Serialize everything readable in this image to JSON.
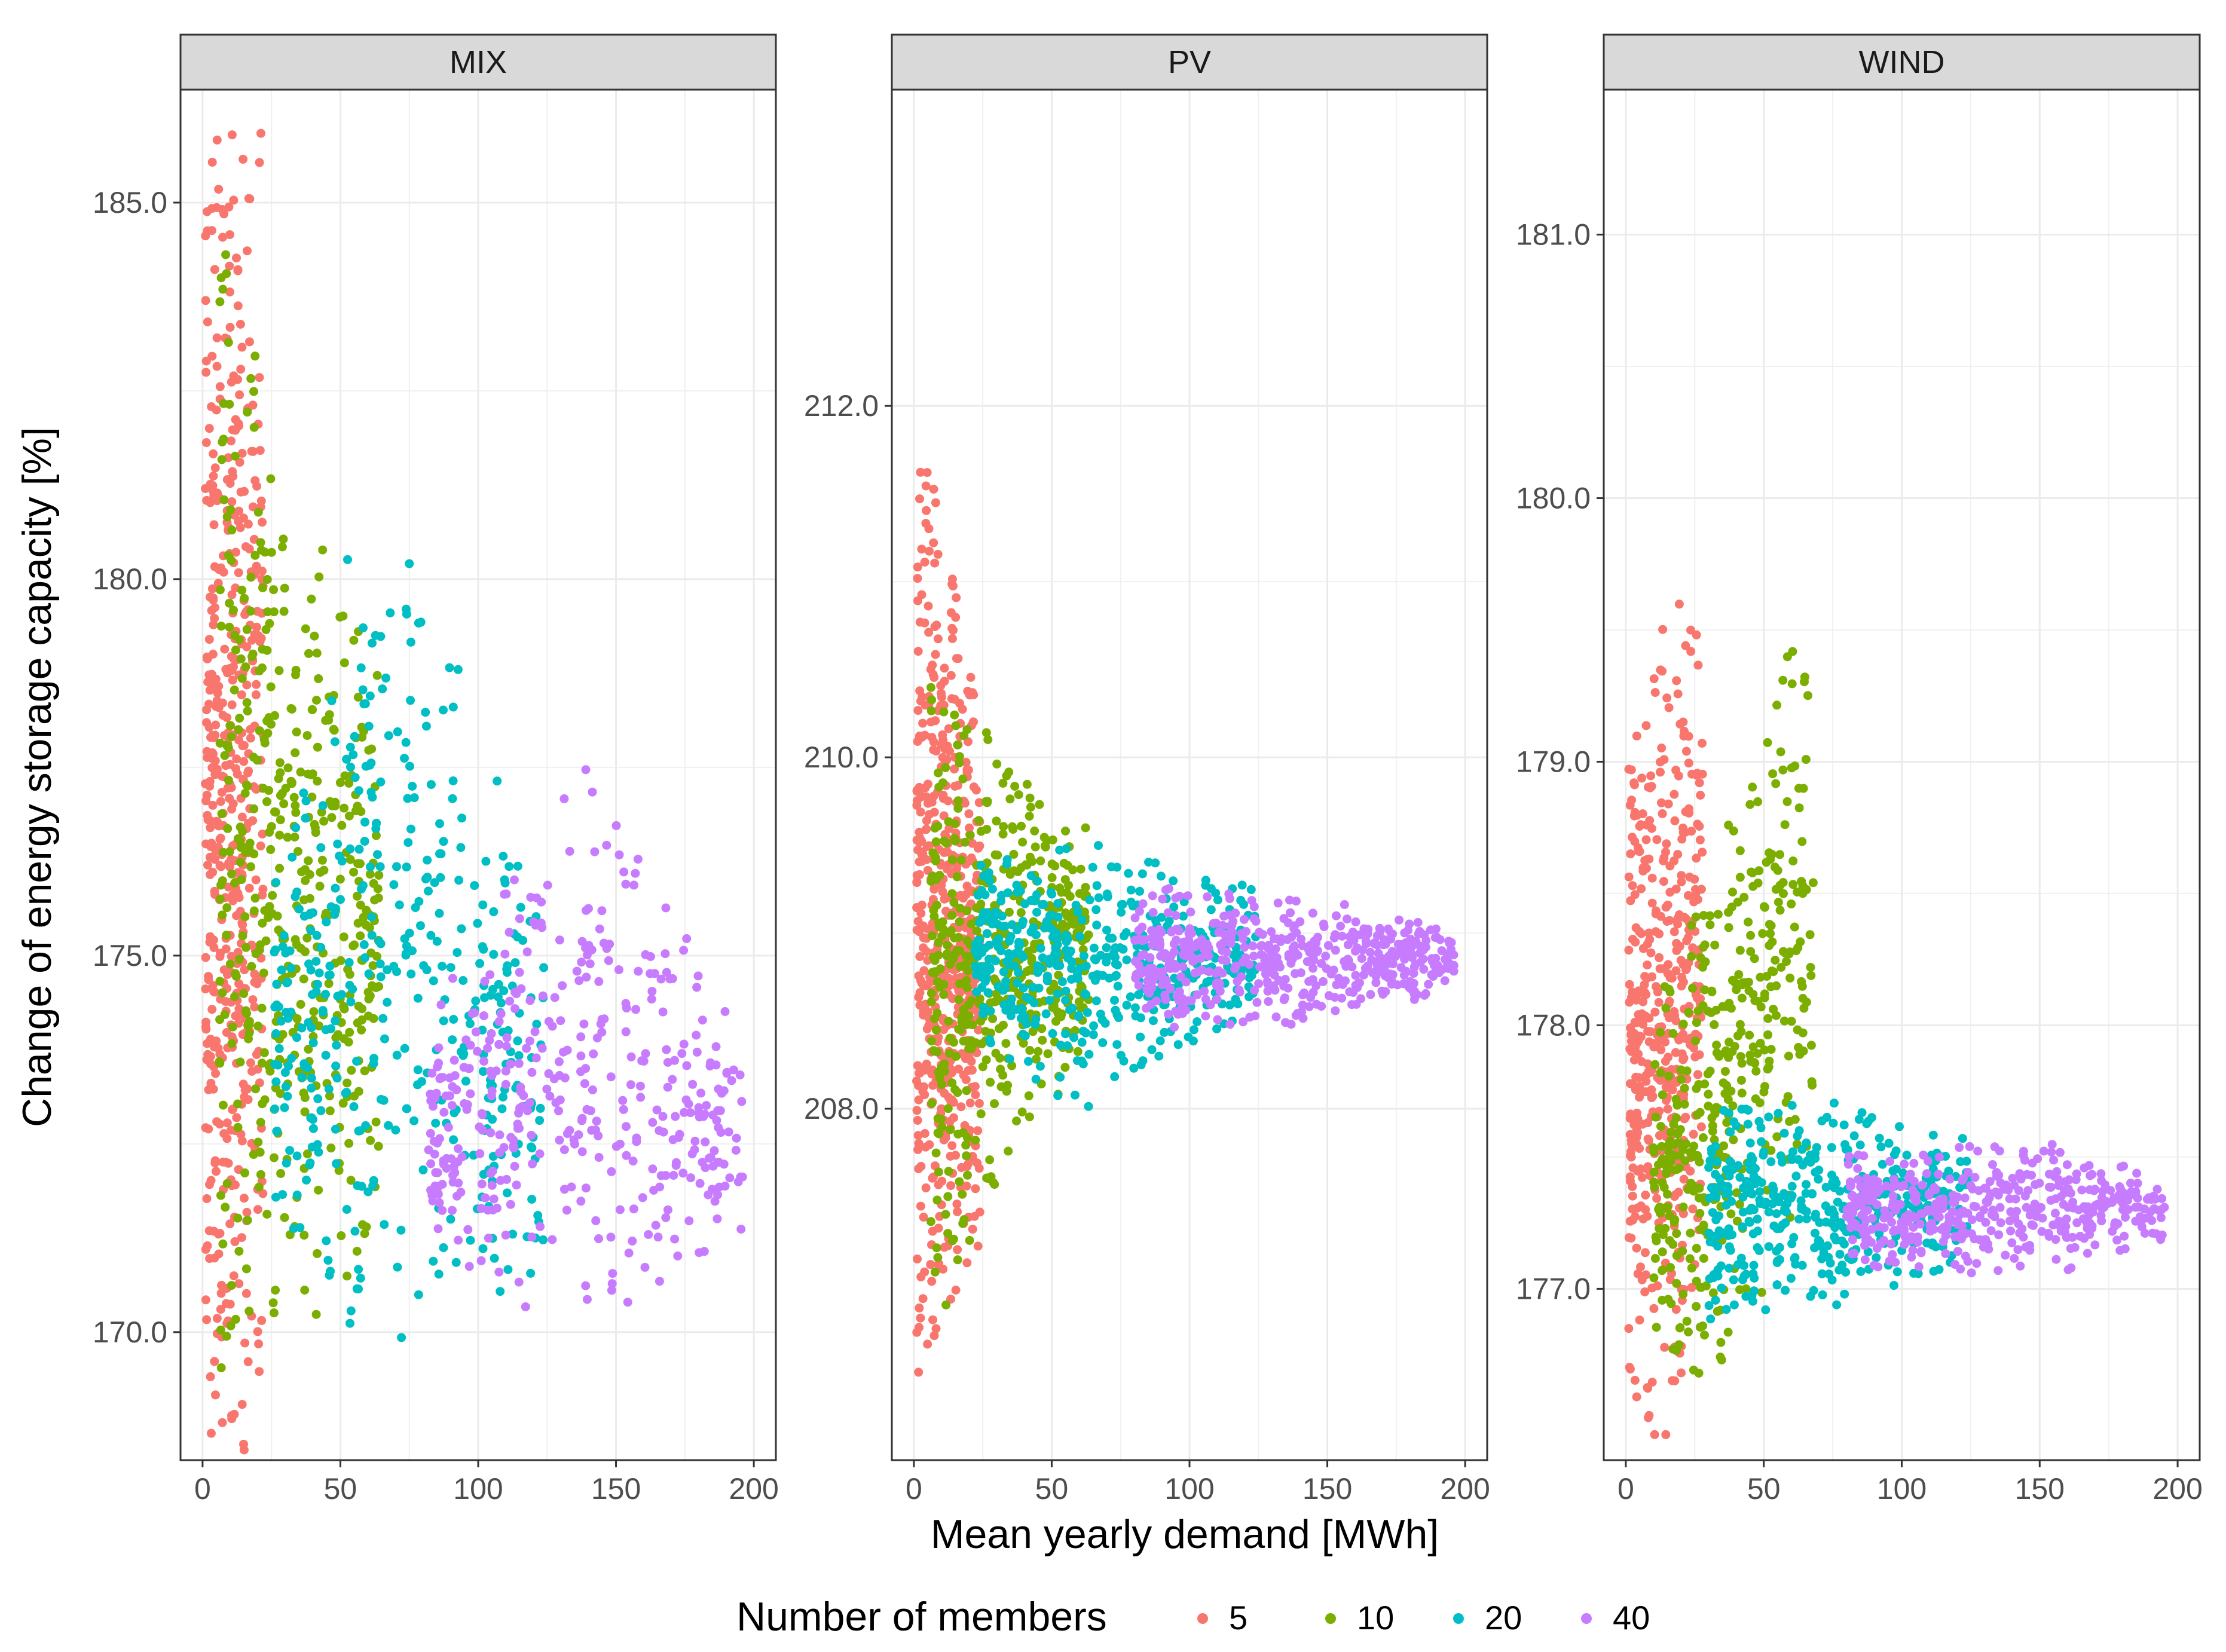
{
  "chart_data": {
    "type": "scatter",
    "title": "",
    "xlabel": "Mean yearly demand [MWh]",
    "ylabel": "Change of energy storage capacity [%]",
    "legend": {
      "title": "Number of members",
      "position": "bottom",
      "entries": [
        {
          "label": "5",
          "color": "#F8766D"
        },
        {
          "label": "10",
          "color": "#7CAE00"
        },
        {
          "label": "20",
          "color": "#00BFC4"
        },
        {
          "label": "40",
          "color": "#C77CFF"
        }
      ]
    },
    "xlim": [
      -8,
      208
    ],
    "xticks": [
      0,
      50,
      100,
      150,
      200
    ],
    "xtick_labels": [
      "0",
      "50",
      "100",
      "150",
      "200"
    ],
    "point_generation": "approximate distribution summaries: each series is rendered as n scattered points around a mean curve (center at x) with +/- half-width; values estimated from the source figure",
    "facets": [
      {
        "name": "MIX",
        "ylim": [
          168.3,
          186.5
        ],
        "yticks": [
          170.0,
          175.0,
          180.0,
          185.0
        ],
        "ytick_labels": [
          "170.0",
          "175.0",
          "180.0",
          "185.0"
        ],
        "series": [
          {
            "name": "5",
            "color": "#F8766D",
            "n": 520,
            "x_range": [
              1,
              22
            ],
            "center": [
              [
                1,
                177.0
              ],
              [
                22,
                177.0
              ]
            ],
            "halfwidth": [
              [
                1,
                7.5
              ],
              [
                22,
                7.5
              ]
            ]
          },
          {
            "name": "10",
            "color": "#7CAE00",
            "n": 480,
            "x_range": [
              6,
              64
            ],
            "center": [
              [
                6,
                177.0
              ],
              [
                40,
                175.5
              ],
              [
                64,
                175.0
              ]
            ],
            "halfwidth": [
              [
                6,
                6.5
              ],
              [
                40,
                4.5
              ],
              [
                64,
                3.2
              ]
            ]
          },
          {
            "name": "20",
            "color": "#00BFC4",
            "n": 420,
            "x_range": [
              26,
              124
            ],
            "center": [
              [
                26,
                173.5
              ],
              [
                60,
                175.5
              ],
              [
                100,
                174.0
              ],
              [
                124,
                173.0
              ]
            ],
            "halfwidth": [
              [
                26,
                2.0
              ],
              [
                60,
                5.0
              ],
              [
                100,
                3.5
              ],
              [
                124,
                1.8
              ]
            ]
          },
          {
            "name": "40",
            "color": "#C77CFF",
            "n": 420,
            "x_range": [
              82,
              196
            ],
            "center": [
              [
                82,
                172.5
              ],
              [
                140,
                173.8
              ],
              [
                196,
                172.5
              ]
            ],
            "halfwidth": [
              [
                82,
                1.5
              ],
              [
                140,
                3.2
              ],
              [
                196,
                1.2
              ]
            ]
          }
        ]
      },
      {
        "name": "PV",
        "ylim": [
          206.0,
          213.8
        ],
        "yticks": [
          208.0,
          210.0,
          212.0
        ],
        "ytick_labels": [
          "208.0",
          "210.0",
          "212.0"
        ],
        "series": [
          {
            "name": "5",
            "color": "#F8766D",
            "n": 560,
            "x_range": [
              1,
              24
            ],
            "center": [
              [
                1,
                209.2
              ],
              [
                24,
                208.8
              ]
            ],
            "halfwidth": [
              [
                1,
                2.3
              ],
              [
                24,
                1.3
              ]
            ]
          },
          {
            "name": "10",
            "color": "#7CAE00",
            "n": 480,
            "x_range": [
              6,
              64
            ],
            "center": [
              [
                6,
                208.6
              ],
              [
                35,
                208.8
              ],
              [
                64,
                209.0
              ]
            ],
            "halfwidth": [
              [
                6,
                1.6
              ],
              [
                35,
                1.0
              ],
              [
                64,
                0.5
              ]
            ]
          },
          {
            "name": "20",
            "color": "#00BFC4",
            "n": 460,
            "x_range": [
              22,
              124
            ],
            "center": [
              [
                22,
                208.9
              ],
              [
                60,
                208.75
              ],
              [
                124,
                208.9
              ]
            ],
            "halfwidth": [
              [
                22,
                0.4
              ],
              [
                60,
                0.65
              ],
              [
                124,
                0.3
              ]
            ]
          },
          {
            "name": "40",
            "color": "#C77CFF",
            "n": 500,
            "x_range": [
              80,
              196
            ],
            "center": [
              [
                80,
                208.85
              ],
              [
                150,
                208.85
              ],
              [
                196,
                208.85
              ]
            ],
            "halfwidth": [
              [
                80,
                0.35
              ],
              [
                150,
                0.3
              ],
              [
                196,
                0.15
              ]
            ]
          }
        ]
      },
      {
        "name": "WIND",
        "ylim": [
          176.35,
          181.55
        ],
        "yticks": [
          177.0,
          178.0,
          179.0,
          180.0,
          181.0
        ],
        "ytick_labels": [
          "177.0",
          "178.0",
          "179.0",
          "180.0",
          "181.0"
        ],
        "series": [
          {
            "name": "5",
            "color": "#F8766D",
            "n": 480,
            "x_range": [
              1,
              28
            ],
            "center": [
              [
                1,
                177.8
              ],
              [
                14,
                178.0
              ],
              [
                28,
                178.3
              ]
            ],
            "halfwidth": [
              [
                1,
                1.0
              ],
              [
                14,
                1.4
              ],
              [
                28,
                1.0
              ]
            ]
          },
          {
            "name": "10",
            "color": "#7CAE00",
            "n": 420,
            "x_range": [
              10,
              68
            ],
            "center": [
              [
                10,
                177.4
              ],
              [
                30,
                177.6
              ],
              [
                68,
                178.5
              ]
            ],
            "halfwidth": [
              [
                10,
                0.55
              ],
              [
                30,
                0.8
              ],
              [
                68,
                1.0
              ]
            ]
          },
          {
            "name": "20",
            "color": "#00BFC4",
            "n": 440,
            "x_range": [
              30,
              124
            ],
            "center": [
              [
                30,
                177.3
              ],
              [
                70,
                177.3
              ],
              [
                124,
                177.35
              ]
            ],
            "halfwidth": [
              [
                30,
                0.35
              ],
              [
                70,
                0.35
              ],
              [
                124,
                0.2
              ]
            ]
          },
          {
            "name": "40",
            "color": "#C77CFF",
            "n": 460,
            "x_range": [
              80,
              196
            ],
            "center": [
              [
                80,
                177.3
              ],
              [
                150,
                177.3
              ],
              [
                196,
                177.3
              ]
            ],
            "halfwidth": [
              [
                80,
                0.18
              ],
              [
                150,
                0.22
              ],
              [
                196,
                0.1
              ]
            ]
          }
        ]
      }
    ]
  }
}
